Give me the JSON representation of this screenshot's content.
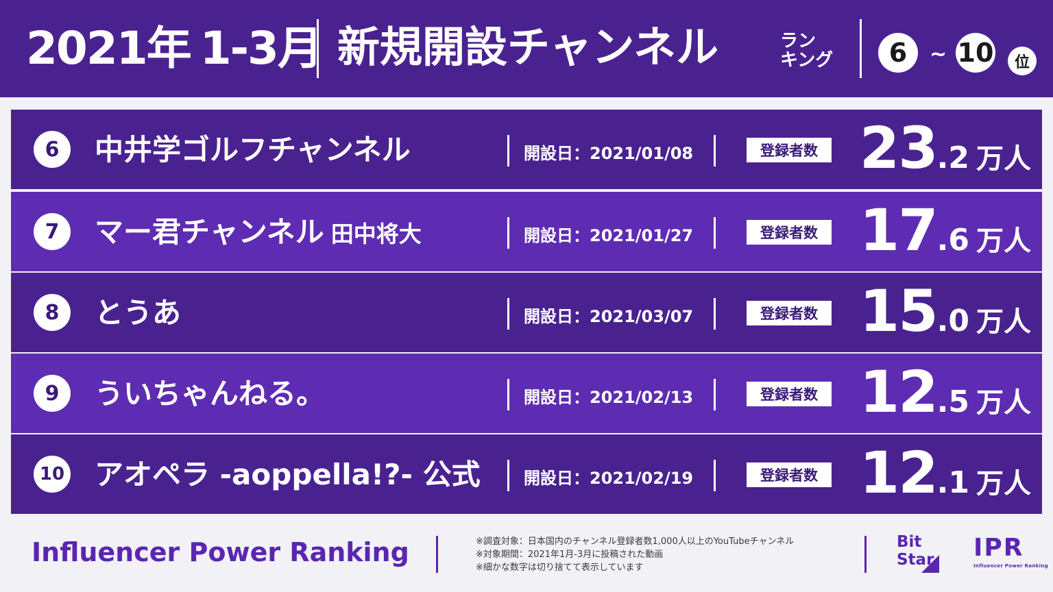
{
  "header": {
    "year": "2021年",
    "period": "1-3月",
    "title": "新規開設チャンネル",
    "ranking_line1": "ラン",
    "ranking_line2": "キング",
    "range_start": "6",
    "range_tilde": "~",
    "range_end": "10",
    "rank_suffix": "位"
  },
  "rows": [
    {
      "rank": "6",
      "name": "中井学ゴルフチャンネル",
      "name_sub": "",
      "date": "開設日：2021/01/08",
      "badge": "登録者数",
      "subs_int": "23",
      "subs_dec": ".2",
      "unit": "万人"
    },
    {
      "rank": "7",
      "name": "マー君チャンネル",
      "name_sub": "田中将大",
      "date": "開設日：2021/01/27",
      "badge": "登録者数",
      "subs_int": "17",
      "subs_dec": ".6",
      "unit": "万人"
    },
    {
      "rank": "8",
      "name": "とうあ",
      "name_sub": "",
      "date": "開設日：2021/03/07",
      "badge": "登録者数",
      "subs_int": "15",
      "subs_dec": ".0",
      "unit": "万人"
    },
    {
      "rank": "9",
      "name": "ういちゃんねる。",
      "name_sub": "",
      "date": "開設日：2021/02/13",
      "badge": "登録者数",
      "subs_int": "12",
      "subs_dec": ".5",
      "unit": "万人"
    },
    {
      "rank": "10",
      "name": "アオペラ -aoppella!?- 公式",
      "name_sub": "",
      "date": "開設日：2021/02/19",
      "badge": "登録者数",
      "subs_int": "12",
      "subs_dec": ".1",
      "unit": "万人"
    }
  ],
  "footer": {
    "brand": "Influencer Power Ranking",
    "notes": [
      "※調査対象：日本国内のチャンネル登録者数1,000人以上のYouTubeチャンネル",
      "※対象期間：2021年1月-3月に投稿された動画",
      "※細かな数字は切り捨てて表示しています"
    ],
    "logo_bitstar_line1": "Bit",
    "logo_bitstar_line2": "Star",
    "logo_ipr": "IPR",
    "logo_ipr_caption": "Influencer Power Ranking"
  },
  "colors": {
    "header_bg": "#4a2290",
    "row_dark": "#4a2290",
    "row_light": "#5e2cb2",
    "accent": "#5a26b0",
    "page_bg": "#f2f1f6"
  }
}
